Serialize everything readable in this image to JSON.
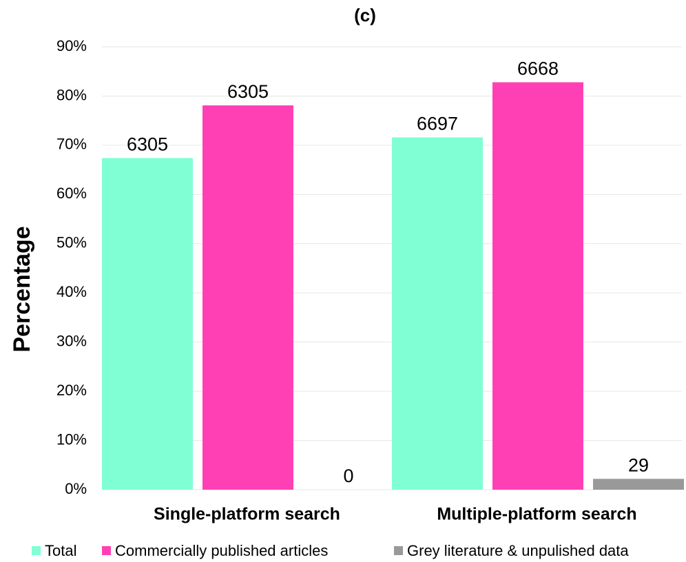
{
  "chart_data": {
    "type": "bar",
    "title": "(c)",
    "y_label": "Percentage",
    "categories": [
      "Single-platform search",
      "Multiple-platform search"
    ],
    "series": [
      {
        "name": "Total",
        "color": "#80ffd4",
        "values": [
          67.4,
          71.6
        ],
        "data_labels": [
          6305,
          6697
        ]
      },
      {
        "name": "Commercially published articles",
        "color": "#ff40b4",
        "values": [
          78.1,
          82.8
        ],
        "data_labels": [
          6305,
          6668
        ]
      },
      {
        "name": "Grey literature & unpulished data",
        "color": "#999999",
        "values": [
          0,
          2.2
        ],
        "data_labels": [
          0,
          29
        ]
      }
    ],
    "ylim": [
      0,
      90
    ],
    "yticks": [
      {
        "value": 0,
        "label": "0%"
      },
      {
        "value": 10,
        "label": "10%"
      },
      {
        "value": 20,
        "label": "20%"
      },
      {
        "value": 30,
        "label": "30%"
      },
      {
        "value": 40,
        "label": "40%"
      },
      {
        "value": 50,
        "label": "50%"
      },
      {
        "value": 60,
        "label": "60%"
      },
      {
        "value": 70,
        "label": "70%"
      },
      {
        "value": 80,
        "label": "80%"
      },
      {
        "value": 90,
        "label": "90%"
      }
    ],
    "grid": true
  }
}
